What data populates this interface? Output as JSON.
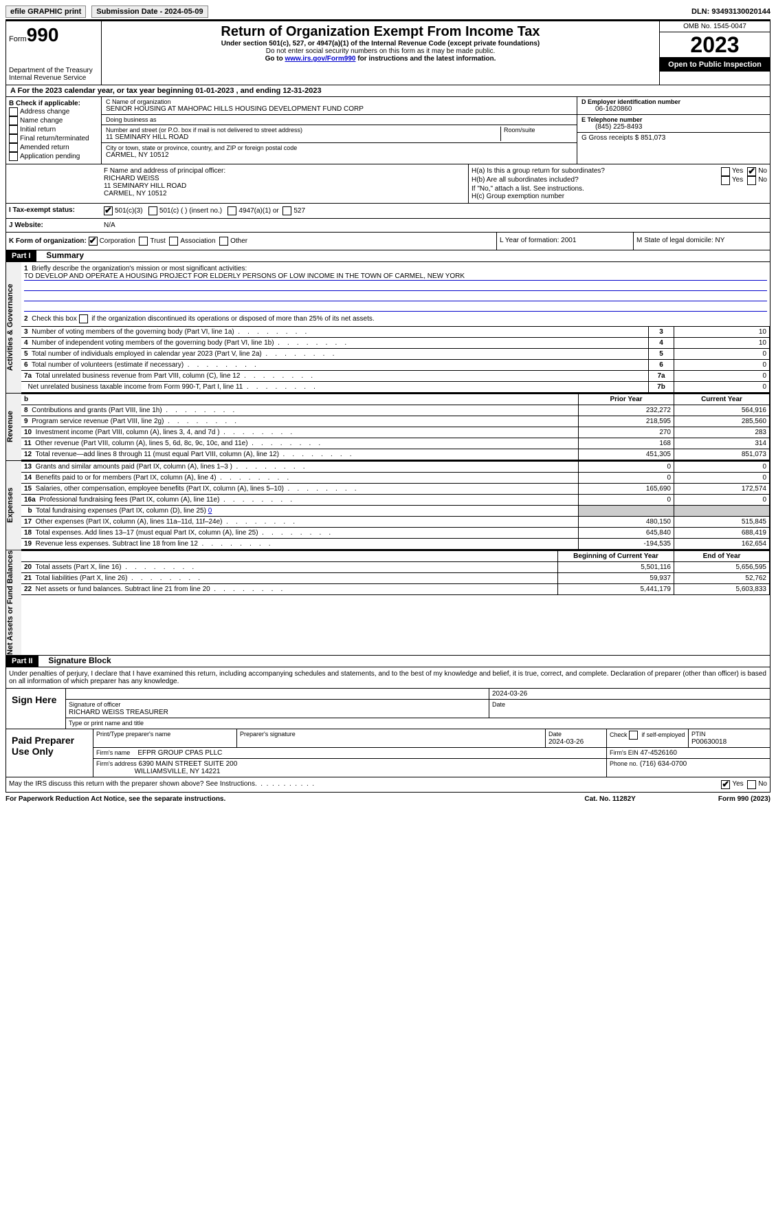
{
  "topbar": {
    "efile_label": "efile GRAPHIC print",
    "sub_date_label": "Submission Date - 2024-05-09",
    "dln": "DLN: 93493130020144"
  },
  "header": {
    "form_label": "Form",
    "form_no": "990",
    "dept": "Department of the Treasury\nInternal Revenue Service",
    "title": "Return of Organization Exempt From Income Tax",
    "subtitle": "Under section 501(c), 527, or 4947(a)(1) of the Internal Revenue Code (except private foundations)",
    "ssn_note": "Do not enter social security numbers on this form as it may be made public.",
    "goto_prefix": "Go to ",
    "goto_link": "www.irs.gov/Form990",
    "goto_suffix": " for instructions and the latest information.",
    "omb": "OMB No. 1545-0047",
    "year": "2023",
    "open": "Open to Public Inspection"
  },
  "section_a": "A For the 2023 calendar year, or tax year beginning 01-01-2023   , and ending 12-31-2023",
  "col_b": {
    "label": "B Check if applicable:",
    "items": [
      "Address change",
      "Name change",
      "Initial return",
      "Final return/terminated",
      "Amended return",
      "Application pending"
    ]
  },
  "col_c": {
    "name_label": "C Name of organization",
    "name": "SENIOR HOUSING AT MAHOPAC HILLS HOUSING DEVELOPMENT FUND CORP",
    "dba_label": "Doing business as",
    "dba": "",
    "addr_label": "Number and street (or P.O. box if mail is not delivered to street address)",
    "addr": "11 SEMINARY HILL ROAD",
    "room_label": "Room/suite",
    "city_label": "City or town, state or province, country, and ZIP or foreign postal code",
    "city": "CARMEL, NY  10512"
  },
  "col_d": {
    "label": "D Employer identification number",
    "value": "06-1620860"
  },
  "col_e": {
    "label": "E Telephone number",
    "value": "(845) 225-8493"
  },
  "col_g": {
    "label": "G Gross receipts $ 851,073"
  },
  "col_f": {
    "label": "F  Name and address of principal officer:",
    "name": "RICHARD WEISS",
    "addr1": "11 SEMINARY HILL ROAD",
    "addr2": "CARMEL, NY  10512"
  },
  "col_h": {
    "a": "H(a)  Is this a group return for subordinates?",
    "b": "H(b)  Are all subordinates included?",
    "b_note": "If \"No,\" attach a list. See instructions.",
    "c": "H(c)  Group exemption number"
  },
  "yes": "Yes",
  "no": "No",
  "tax_status": {
    "label": "I   Tax-exempt status:",
    "a": "501(c)(3)",
    "b": "501(c) (  ) (insert no.)",
    "c": "4947(a)(1) or",
    "d": "527"
  },
  "website": {
    "label": "J   Website:",
    "value": "N/A"
  },
  "form_org": {
    "label": "K Form of organization:",
    "a": "Corporation",
    "b": "Trust",
    "c": "Association",
    "d": "Other"
  },
  "year_formation": {
    "label": "L Year of formation: 2001"
  },
  "domicile": {
    "label": "M State of legal domicile: NY"
  },
  "part1": {
    "label": "Part I",
    "title": "Summary"
  },
  "summary": {
    "line1_label": "Briefly describe the organization's mission or most significant activities:",
    "line1_mission": "TO DEVELOP AND OPERATE A HOUSING PROJECT FOR ELDERLY PERSONS OF LOW INCOME IN THE TOWN OF CARMEL, NEW YORK",
    "line2": "Check this box        if the organization discontinued its operations or disposed of more than 25% of its net assets.",
    "rows_gov": [
      {
        "n": "3",
        "t": "Number of voting members of the governing body (Part VI, line 1a)",
        "k": "3",
        "v": "10"
      },
      {
        "n": "4",
        "t": "Number of independent voting members of the governing body (Part VI, line 1b)",
        "k": "4",
        "v": "10"
      },
      {
        "n": "5",
        "t": "Total number of individuals employed in calendar year 2023 (Part V, line 2a)",
        "k": "5",
        "v": "0"
      },
      {
        "n": "6",
        "t": "Total number of volunteers (estimate if necessary)",
        "k": "6",
        "v": "0"
      },
      {
        "n": "7a",
        "t": "Total unrelated business revenue from Part VIII, column (C), line 12",
        "k": "7a",
        "v": "0"
      },
      {
        "n": "",
        "t": "Net unrelated business taxable income from Form 990-T, Part I, line 11",
        "k": "7b",
        "v": "0"
      }
    ],
    "hdr_b": "b",
    "hdr_prior": "Prior Year",
    "hdr_current": "Current Year",
    "rows_rev": [
      {
        "n": "8",
        "t": "Contributions and grants (Part VIII, line 1h)",
        "p": "232,272",
        "c": "564,916"
      },
      {
        "n": "9",
        "t": "Program service revenue (Part VIII, line 2g)",
        "p": "218,595",
        "c": "285,560"
      },
      {
        "n": "10",
        "t": "Investment income (Part VIII, column (A), lines 3, 4, and 7d )",
        "p": "270",
        "c": "283"
      },
      {
        "n": "11",
        "t": "Other revenue (Part VIII, column (A), lines 5, 6d, 8c, 9c, 10c, and 11e)",
        "p": "168",
        "c": "314"
      },
      {
        "n": "12",
        "t": "Total revenue—add lines 8 through 11 (must equal Part VIII, column (A), line 12)",
        "p": "451,305",
        "c": "851,073"
      }
    ],
    "rows_exp": [
      {
        "n": "13",
        "t": "Grants and similar amounts paid (Part IX, column (A), lines 1–3 )",
        "p": "0",
        "c": "0"
      },
      {
        "n": "14",
        "t": "Benefits paid to or for members (Part IX, column (A), line 4)",
        "p": "0",
        "c": "0"
      },
      {
        "n": "15",
        "t": "Salaries, other compensation, employee benefits (Part IX, column (A), lines 5–10)",
        "p": "165,690",
        "c": "172,574"
      },
      {
        "n": "16a",
        "t": "Professional fundraising fees (Part IX, column (A), line 11e)",
        "p": "0",
        "c": "0"
      }
    ],
    "line_b": "Total fundraising expenses (Part IX, column (D), line 25) ",
    "line_b_val": "0",
    "rows_exp2": [
      {
        "n": "17",
        "t": "Other expenses (Part IX, column (A), lines 11a–11d, 11f–24e)",
        "p": "480,150",
        "c": "515,845"
      },
      {
        "n": "18",
        "t": "Total expenses. Add lines 13–17 (must equal Part IX, column (A), line 25)",
        "p": "645,840",
        "c": "688,419"
      },
      {
        "n": "19",
        "t": "Revenue less expenses. Subtract line 18 from line 12",
        "p": "-194,535",
        "c": "162,654"
      }
    ],
    "hdr_begin": "Beginning of Current Year",
    "hdr_end": "End of Year",
    "rows_net": [
      {
        "n": "20",
        "t": "Total assets (Part X, line 16)",
        "p": "5,501,116",
        "c": "5,656,595"
      },
      {
        "n": "21",
        "t": "Total liabilities (Part X, line 26)",
        "p": "59,937",
        "c": "52,762"
      },
      {
        "n": "22",
        "t": "Net assets or fund balances. Subtract line 21 from line 20",
        "p": "5,441,179",
        "c": "5,603,833"
      }
    ],
    "side_gov": "Activities & Governance",
    "side_rev": "Revenue",
    "side_exp": "Expenses",
    "side_net": "Net Assets or Fund Balances"
  },
  "part2": {
    "label": "Part II",
    "title": "Signature Block"
  },
  "sig": {
    "perjury": "Under penalties of perjury, I declare that I have examined this return, including accompanying schedules and statements, and to the best of my knowledge and belief, it is true, correct, and complete. Declaration of preparer (other than officer) is based on all information of which preparer has any knowledge.",
    "sign_here": "Sign Here",
    "date1": "2024-03-26",
    "sig_officer_label": "Signature of officer",
    "officer_name": "RICHARD WEISS TREASURER",
    "type_label": "Type or print name and title",
    "date_label": "Date",
    "paid": "Paid Preparer Use Only",
    "prep_name_label": "Print/Type preparer's name",
    "prep_sig_label": "Preparer's signature",
    "prep_date": "2024-03-26",
    "self_emp": "Check         if self-employed",
    "ptin_label": "PTIN",
    "ptin": "P00630018",
    "firm_name_label": "Firm's name",
    "firm_name": "EFPR GROUP CPAS PLLC",
    "firm_ein_label": "Firm's EIN",
    "firm_ein": "47-4526160",
    "firm_addr_label": "Firm's address",
    "firm_addr1": "6390 MAIN STREET SUITE 200",
    "firm_addr2": "WILLIAMSVILLE, NY  14221",
    "phone_label": "Phone no.",
    "phone": "(716) 634-0700",
    "discuss": "May the IRS discuss this return with the preparer shown above? See Instructions."
  },
  "footer": {
    "left": "For Paperwork Reduction Act Notice, see the separate instructions.",
    "mid": "Cat. No. 11282Y",
    "right": "Form 990 (2023)"
  }
}
